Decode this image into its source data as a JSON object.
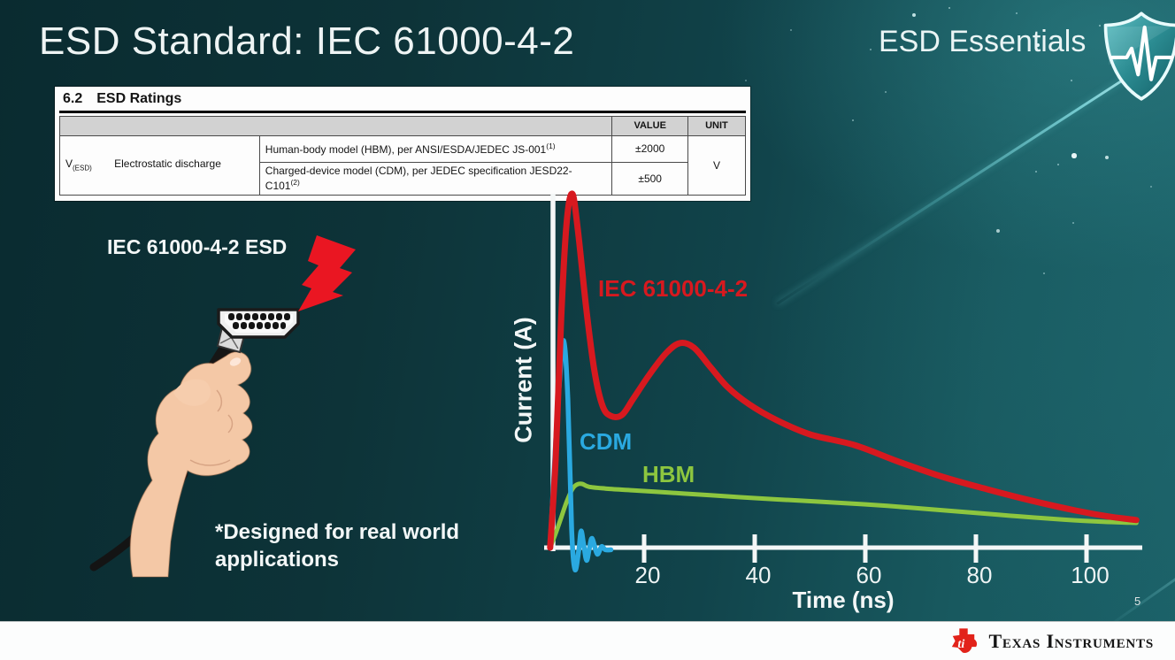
{
  "slide": {
    "title": "ESD Standard: IEC 61000-4-2",
    "badge": "ESD Essentials",
    "page_number": "5",
    "footer_brand": "Texas Instruments"
  },
  "ratings_table": {
    "section_number": "6.2",
    "section_title": "ESD Ratings",
    "col_value": "VALUE",
    "col_unit": "UNIT",
    "symbol": "V",
    "symbol_subscript": "(ESD)",
    "parameter": "Electrostatic discharge",
    "rows": [
      {
        "description": "Human-body model (HBM), per ANSI/ESDA/JEDEC JS-001",
        "footnote": "(1)",
        "value": "±2000"
      },
      {
        "description": "Charged-device model (CDM), per JEDEC specification JESD22-C101",
        "footnote": "(2)",
        "value": "±500"
      }
    ],
    "unit": "V"
  },
  "illustration": {
    "label": "IEC 61000-4-2 ESD",
    "caption": "*Designed for real world applications"
  },
  "chart_data": {
    "type": "line",
    "title": "",
    "xlabel": "Time (ns)",
    "ylabel": "Current (A)",
    "x_ticks": [
      20,
      40,
      60,
      80,
      100
    ],
    "xlim": [
      0,
      110
    ],
    "ylim": [
      -0.08,
      1.05
    ],
    "grid": false,
    "legend": "inline-colored-labels",
    "note": "y values are relative amplitude; no y-axis ticks shown",
    "series": [
      {
        "name": "IEC 61000-4-2",
        "color": "#d7191f",
        "points": [
          [
            3,
            0
          ],
          [
            4,
            0.25
          ],
          [
            5,
            0.65
          ],
          [
            6,
            0.92
          ],
          [
            7,
            1.0
          ],
          [
            8,
            0.9
          ],
          [
            9.5,
            0.68
          ],
          [
            11,
            0.5
          ],
          [
            12.5,
            0.4
          ],
          [
            14,
            0.372
          ],
          [
            16,
            0.375
          ],
          [
            18,
            0.42
          ],
          [
            21,
            0.49
          ],
          [
            24,
            0.55
          ],
          [
            26.5,
            0.578
          ],
          [
            29,
            0.565
          ],
          [
            32,
            0.51
          ],
          [
            35,
            0.455
          ],
          [
            39,
            0.405
          ],
          [
            44,
            0.36
          ],
          [
            50,
            0.32
          ],
          [
            58,
            0.29
          ],
          [
            66,
            0.243
          ],
          [
            74,
            0.2
          ],
          [
            82,
            0.165
          ],
          [
            90,
            0.133
          ],
          [
            98,
            0.105
          ],
          [
            104,
            0.088
          ],
          [
            109,
            0.078
          ]
        ]
      },
      {
        "name": "CDM",
        "color": "#2aa9e0",
        "points": [
          [
            3,
            0
          ],
          [
            4,
            0.3
          ],
          [
            4.6,
            0.45
          ],
          [
            5.45,
            0.585
          ],
          [
            6.2,
            0.42
          ],
          [
            6.9,
            0.05
          ],
          [
            7.5,
            -0.062
          ],
          [
            8.2,
            -0.005
          ],
          [
            8.6,
            0.047
          ],
          [
            9.1,
            0.005
          ],
          [
            9.6,
            -0.036
          ],
          [
            10.1,
            -0.002
          ],
          [
            10.6,
            0.026
          ],
          [
            11.5,
            -0.018
          ],
          [
            12.3,
            0.003
          ],
          [
            13,
            -0.006
          ],
          [
            14,
            -0.006
          ]
        ]
      },
      {
        "name": "HBM",
        "color": "#8dc63f",
        "points": [
          [
            3,
            0
          ],
          [
            4,
            0.04
          ],
          [
            5,
            0.085
          ],
          [
            6,
            0.13
          ],
          [
            7,
            0.165
          ],
          [
            7.8,
            0.178
          ],
          [
            8.8,
            0.18
          ],
          [
            10,
            0.172
          ],
          [
            13,
            0.167
          ],
          [
            18,
            0.162
          ],
          [
            25,
            0.155
          ],
          [
            32,
            0.148
          ],
          [
            40,
            0.14
          ],
          [
            48,
            0.133
          ],
          [
            56,
            0.126
          ],
          [
            64,
            0.118
          ],
          [
            72,
            0.108
          ],
          [
            80,
            0.098
          ],
          [
            88,
            0.088
          ],
          [
            96,
            0.079
          ],
          [
            103,
            0.073
          ],
          [
            109,
            0.07
          ]
        ]
      }
    ]
  },
  "colors": {
    "background_teal_dark": "#0a2b30",
    "background_teal_light": "#1b6168",
    "lightning_bolt_red": "#ea1622",
    "ti_logo_red": "#e2231a",
    "axis_white": "#f4f7f7"
  },
  "icons": [
    "shield-pulse-icon",
    "lightning-bolt-icon",
    "hdmi-connector",
    "hand-holding-cable",
    "ti-logo-icon"
  ]
}
